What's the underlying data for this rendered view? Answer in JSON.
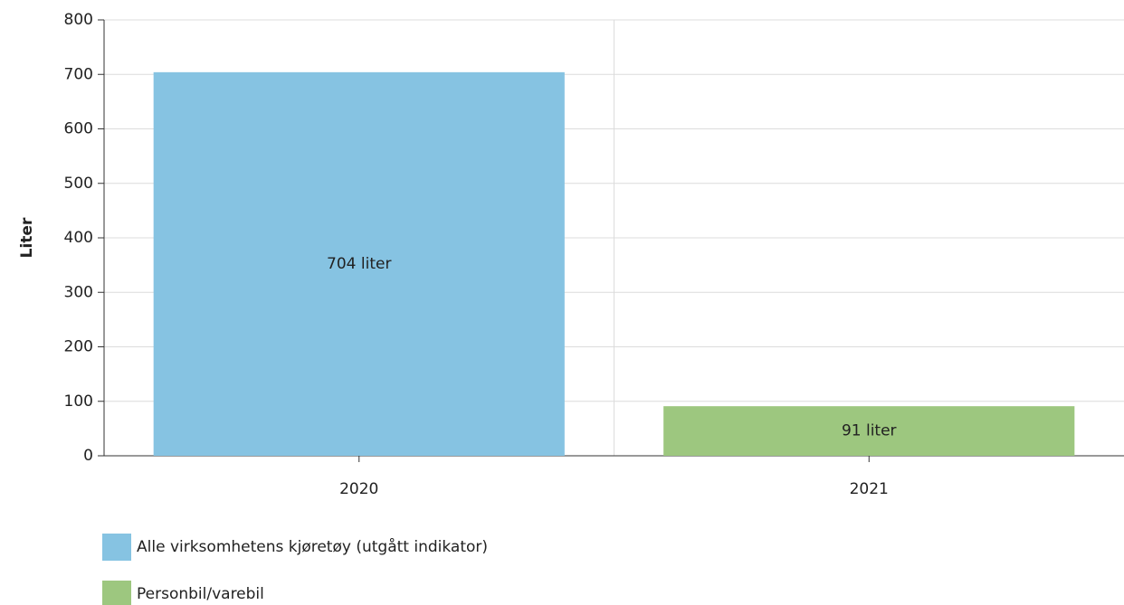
{
  "chart_data": {
    "type": "bar",
    "ylabel": "Liter",
    "categories": [
      "2020",
      "2021"
    ],
    "series": [
      {
        "name": "Alle virksomhetens kjøretøy (utgått indikator)",
        "color": "#86c3e2",
        "values": [
          704,
          null
        ],
        "value_labels": [
          "704 liter",
          null
        ]
      },
      {
        "name": "Personbil/varebil",
        "color": "#9dc77f",
        "values": [
          null,
          91
        ],
        "value_labels": [
          null,
          "91 liter"
        ]
      }
    ],
    "ylim": [
      0,
      800
    ],
    "yticks": [
      0,
      100,
      200,
      300,
      400,
      500,
      600,
      700,
      800
    ],
    "grid": true
  }
}
